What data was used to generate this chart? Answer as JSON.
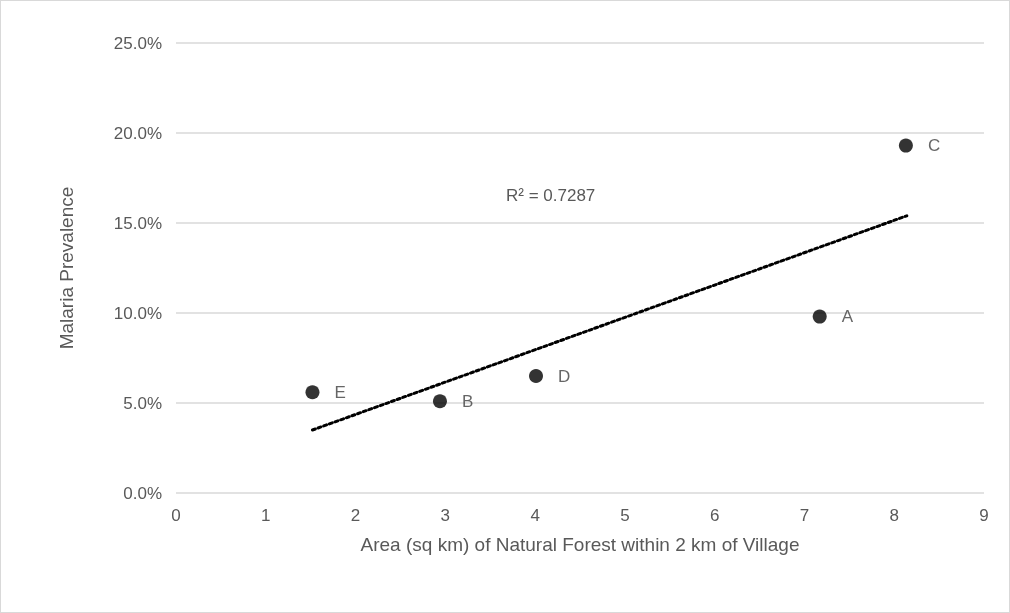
{
  "chart_data": {
    "type": "scatter",
    "xlabel": "Area (sq km) of Natural Forest within 2 km of Village",
    "ylabel": "Malaria Prevalence",
    "series": [
      {
        "color": "#000000",
        "x": [
          7.17,
          2.94,
          8.13,
          4.01,
          1.52
        ],
        "values": [
          9.8,
          5.1,
          19.3,
          6.5,
          5.6
        ]
      },
      {
        "type": "line",
        "color": "#000000",
        "line_style": "dotted",
        "marker": "none",
        "x": [
          1.52,
          8.14
        ],
        "values": [
          3.5,
          15.4
        ]
      }
    ],
    "annotations": [
      {
        "text": "A",
        "x": 7.17,
        "y": 9.8
      },
      {
        "text": "B",
        "x": 2.94,
        "y": 5.1
      },
      {
        "text": "C",
        "x": 8.13,
        "y": 19.3
      },
      {
        "text": "D",
        "x": 4.01,
        "y": 6.5
      },
      {
        "text": "E",
        "x": 1.52,
        "y": 5.6
      },
      "R² = 0.7287"
    ],
    "xlim": [
      0,
      9
    ],
    "xticks": [
      0,
      1,
      2,
      3,
      4,
      5,
      6,
      7,
      8,
      9
    ],
    "ylim": [
      0,
      25
    ],
    "yticks": [
      {
        "value": 0,
        "label": "0.0%"
      },
      {
        "value": 5,
        "label": "5.0%"
      },
      {
        "value": 10,
        "label": "10.0%"
      },
      {
        "value": 15,
        "label": "15.0%"
      },
      {
        "value": 20,
        "label": "20.0%"
      },
      {
        "value": 25,
        "label": "25.0%"
      }
    ],
    "grid": "y",
    "marker": "circle"
  }
}
